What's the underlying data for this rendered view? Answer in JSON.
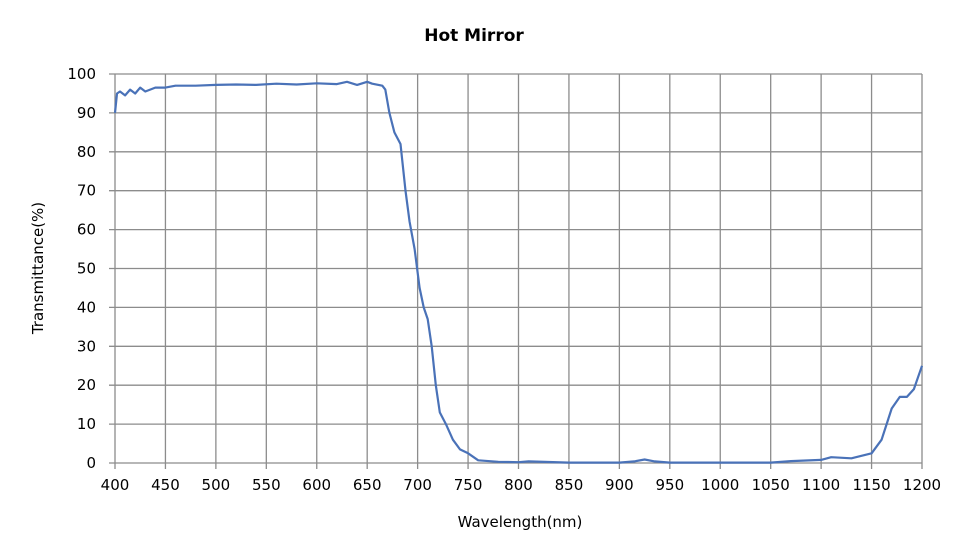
{
  "chart_data": {
    "type": "line",
    "title": "Hot Mirror",
    "xlabel": "Wavelength(nm)",
    "ylabel": "Transmittance(%)",
    "xlim": [
      400,
      1200
    ],
    "ylim": [
      0,
      100
    ],
    "xticks": [
      400,
      450,
      500,
      550,
      600,
      650,
      700,
      750,
      800,
      850,
      900,
      950,
      1000,
      1050,
      1100,
      1150,
      1200
    ],
    "yticks": [
      0,
      10,
      20,
      30,
      40,
      50,
      60,
      70,
      80,
      90,
      100
    ],
    "grid": true,
    "legend": "none",
    "line_color": "#4a72b8",
    "series": [
      {
        "x": [
          400,
          402,
          405,
          410,
          415,
          420,
          425,
          430,
          440,
          450,
          460,
          480,
          500,
          520,
          540,
          560,
          580,
          600,
          620,
          630,
          640,
          650,
          655,
          665,
          668,
          672,
          677,
          683,
          688,
          692,
          697,
          702,
          706,
          710,
          714,
          718,
          722,
          728,
          735,
          742,
          750,
          760,
          780,
          800,
          810,
          850,
          900,
          915,
          925,
          935,
          950,
          1000,
          1050,
          1070,
          1100,
          1110,
          1130,
          1150,
          1160,
          1170,
          1178,
          1185,
          1192,
          1200
        ],
        "y": [
          90,
          95,
          95.5,
          94.5,
          96,
          95,
          96.5,
          95.5,
          96.5,
          96.5,
          97,
          97,
          97.2,
          97.3,
          97.2,
          97.5,
          97.3,
          97.6,
          97.4,
          98,
          97.2,
          98,
          97.5,
          97,
          96,
          90,
          85,
          82,
          70,
          62,
          55,
          45,
          40,
          37,
          30,
          20,
          13,
          10,
          6,
          3.5,
          2.5,
          0.7,
          0.3,
          0.2,
          0.4,
          0.1,
          0.1,
          0.4,
          0.9,
          0.4,
          0.1,
          0.1,
          0.1,
          0.5,
          0.8,
          1.5,
          1.2,
          2.5,
          6,
          14,
          17,
          17,
          19,
          25
        ]
      }
    ]
  }
}
